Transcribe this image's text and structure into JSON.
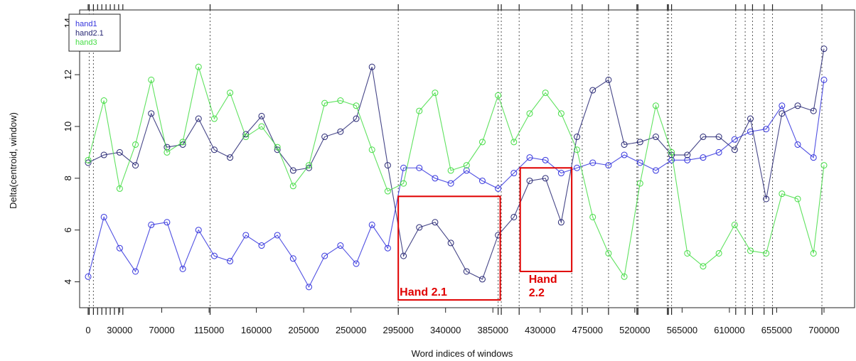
{
  "chart_data": {
    "type": "line",
    "xlabel": "Word indices of windows",
    "ylabel": "Delta(centroid, window)",
    "xlim": [
      0,
      705000
    ],
    "ylim": [
      3,
      14.5
    ],
    "x_ticks": [
      0,
      30000,
      70000,
      115000,
      160000,
      205000,
      250000,
      295000,
      340000,
      385000,
      430000,
      475000,
      520000,
      565000,
      610000,
      655000,
      700000
    ],
    "x_tick_labels": [
      "0",
      "30000",
      "70000",
      "115000",
      "160000",
      "205000",
      "250000",
      "295000",
      "340000",
      "385000",
      "430000",
      "475000",
      "520000",
      "565000",
      "610000",
      "655000",
      "700000"
    ],
    "y_ticks": [
      4,
      6,
      8,
      10,
      12,
      14
    ],
    "y_tick_labels": [
      "4",
      "6",
      "8",
      "10",
      "12",
      "14"
    ],
    "legend_position": "top-left",
    "series": [
      {
        "name": "hand1",
        "color": "#3333dd",
        "x": [
          0,
          15000,
          30000,
          45000,
          60000,
          75000,
          90000,
          105000,
          120000,
          135000,
          150000,
          165000,
          180000,
          195000,
          210000,
          225000,
          240000,
          255000,
          270000,
          285000,
          300000,
          315000,
          330000,
          345000,
          360000,
          375000,
          390000,
          405000,
          420000,
          435000,
          450000,
          465000,
          480000,
          495000,
          510000,
          525000,
          540000,
          555000,
          570000,
          585000,
          600000,
          615000,
          630000,
          645000,
          660000,
          675000,
          690000,
          700000
        ],
        "y": [
          4.2,
          6.5,
          5.3,
          4.4,
          6.2,
          6.3,
          4.5,
          6.0,
          5.0,
          4.8,
          5.8,
          5.4,
          5.8,
          4.9,
          3.8,
          5.0,
          5.4,
          4.7,
          6.2,
          5.3,
          8.4,
          8.4,
          8.0,
          7.8,
          8.3,
          7.9,
          7.6,
          8.2,
          8.8,
          8.7,
          8.2,
          8.4,
          8.6,
          8.5,
          8.9,
          8.6,
          8.3,
          8.7,
          8.7,
          8.8,
          9.0,
          9.5,
          9.8,
          9.9,
          10.8,
          9.3,
          8.8,
          11.8
        ]
      },
      {
        "name": "hand2.1",
        "color": "#262673",
        "x": [
          0,
          15000,
          30000,
          45000,
          60000,
          75000,
          90000,
          105000,
          120000,
          135000,
          150000,
          165000,
          180000,
          195000,
          210000,
          225000,
          240000,
          255000,
          270000,
          285000,
          300000,
          315000,
          330000,
          345000,
          360000,
          375000,
          390000,
          405000,
          420000,
          435000,
          450000,
          465000,
          480000,
          495000,
          510000,
          525000,
          540000,
          555000,
          570000,
          585000,
          600000,
          615000,
          630000,
          645000,
          660000,
          675000,
          690000,
          700000
        ],
        "y": [
          8.6,
          8.9,
          9.0,
          8.5,
          10.5,
          9.2,
          9.3,
          10.3,
          9.1,
          8.8,
          9.7,
          10.4,
          9.1,
          8.3,
          8.4,
          9.6,
          9.8,
          10.3,
          12.3,
          8.5,
          5.0,
          6.1,
          6.3,
          5.5,
          4.4,
          4.1,
          5.8,
          6.5,
          7.9,
          8.0,
          6.3,
          9.6,
          11.4,
          11.8,
          9.3,
          9.4,
          9.6,
          8.9,
          8.9,
          9.6,
          9.6,
          9.1,
          10.3,
          7.2,
          10.5,
          10.8,
          10.6,
          13.0
        ]
      },
      {
        "name": "hand3",
        "color": "#44dd44",
        "x": [
          0,
          15000,
          30000,
          45000,
          60000,
          75000,
          90000,
          105000,
          120000,
          135000,
          150000,
          165000,
          180000,
          195000,
          210000,
          225000,
          240000,
          255000,
          270000,
          285000,
          300000,
          315000,
          330000,
          345000,
          360000,
          375000,
          390000,
          405000,
          420000,
          435000,
          450000,
          465000,
          480000,
          495000,
          510000,
          525000,
          540000,
          555000,
          570000,
          585000,
          600000,
          615000,
          630000,
          645000,
          660000,
          675000,
          690000,
          700000
        ],
        "y": [
          8.7,
          11.0,
          7.6,
          9.3,
          11.8,
          9.0,
          9.4,
          12.3,
          10.3,
          11.3,
          9.6,
          10.0,
          9.2,
          7.7,
          8.5,
          10.9,
          11.0,
          10.8,
          9.1,
          7.5,
          7.8,
          10.6,
          11.3,
          8.3,
          8.5,
          9.4,
          11.2,
          9.4,
          10.5,
          11.3,
          10.5,
          9.1,
          6.5,
          5.1,
          4.2,
          7.8,
          10.8,
          9.0,
          5.1,
          4.6,
          5.1,
          6.2,
          5.2,
          5.1,
          7.4,
          7.2,
          5.1,
          8.5
        ]
      }
    ],
    "vlines": [
      1000,
      5000,
      116000,
      295000,
      390000,
      393000,
      410000,
      460000,
      470000,
      495000,
      522000,
      523000,
      551000,
      552000,
      555000,
      616000,
      625000,
      632000,
      643000,
      651000,
      698000
    ],
    "rug": [
      0,
      1000,
      5000,
      9000,
      13000,
      17000,
      21000,
      25000,
      29000,
      33000,
      116000,
      295000,
      390000,
      393000,
      410000,
      460000,
      470000,
      495000,
      522000,
      523000,
      551000,
      552000,
      555000,
      616000,
      625000,
      632000,
      643000,
      651000,
      698000
    ],
    "annotations": [
      {
        "label": "Hand 2.1",
        "x_range": [
          295000,
          392000
        ],
        "y_range": [
          3.3,
          7.3
        ]
      },
      {
        "label": "Hand 2.2",
        "x_range": [
          411000,
          460000
        ],
        "y_range": [
          4.4,
          8.4
        ]
      }
    ]
  }
}
